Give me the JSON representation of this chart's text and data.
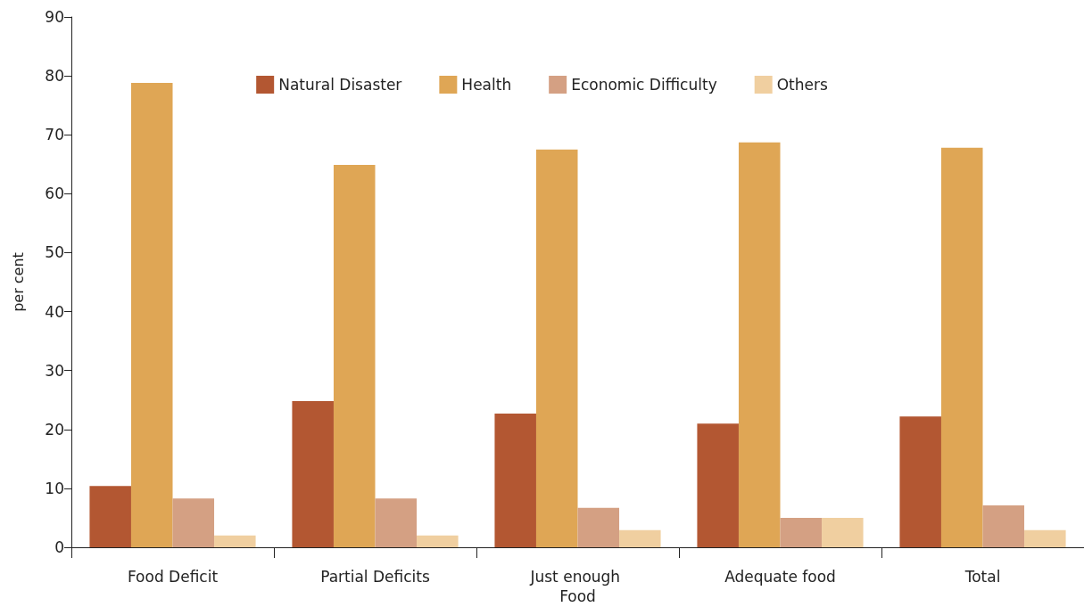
{
  "chart_data": {
    "type": "bar",
    "ylabel": "per cent",
    "categories": [
      "Food Deficit",
      "Partial Deficits",
      "Just enough Food",
      "Adequate food",
      "Total"
    ],
    "series": [
      {
        "name": "Natural Disaster",
        "color": "#b35732",
        "values": [
          10.4,
          24.8,
          22.7,
          21.0,
          22.2
        ]
      },
      {
        "name": "Health",
        "color": "#dfa655",
        "values": [
          78.8,
          64.9,
          67.5,
          68.7,
          67.8
        ]
      },
      {
        "name": "Economic Difficulty",
        "color": "#d4a083",
        "values": [
          8.3,
          8.3,
          6.7,
          5.0,
          7.1
        ]
      },
      {
        "name": "Others",
        "color": "#f0cfa0",
        "values": [
          2.0,
          2.0,
          2.9,
          5.0,
          2.9
        ]
      }
    ],
    "ylim": [
      0,
      90
    ],
    "yticks": [
      0,
      10,
      20,
      30,
      40,
      50,
      60,
      70,
      80,
      90
    ],
    "grid": false,
    "legend": "top"
  }
}
